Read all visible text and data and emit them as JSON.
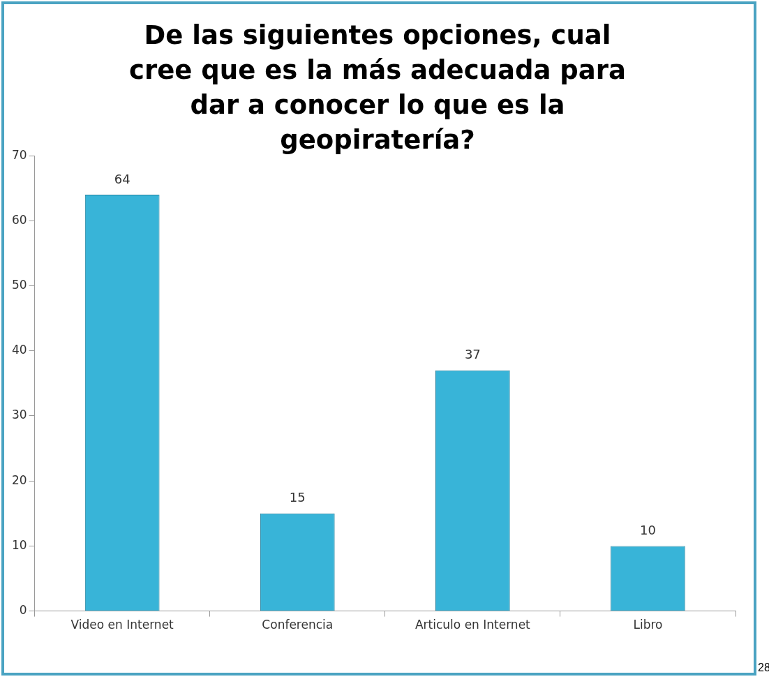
{
  "chart_data": {
    "type": "bar",
    "title": "De las siguientes opciones, cual cree que es la más adecuada para dar a conocer lo que es la geopiratería?",
    "categories": [
      "Video en Internet",
      "Conferencia",
      "Articulo en Internet",
      "Libro"
    ],
    "values": [
      64,
      15,
      37,
      10
    ],
    "color": "#38b4d8",
    "ylim": [
      0,
      70
    ],
    "yticks": [
      0,
      10,
      20,
      30,
      40,
      50,
      60,
      70
    ],
    "grid": false,
    "legend": false,
    "data_labels": true,
    "annotations": [
      "28"
    ]
  }
}
